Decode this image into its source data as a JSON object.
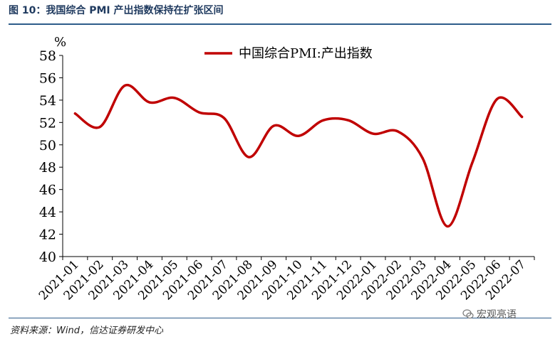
{
  "header": {
    "title": "图 10：我国综合 PMI 产出指数保持在扩张区间"
  },
  "footer": {
    "source": "资料来源：Wind，信达证券研发中心",
    "watermark": "宏观亮语"
  },
  "colors": {
    "series": "#c00000",
    "rule": "#2e5c8a",
    "title": "#1f3a5f"
  },
  "chart_data": {
    "type": "line",
    "title": "",
    "ylabel": "%",
    "xlabel": "",
    "ylim": [
      40,
      58
    ],
    "yticks": [
      40,
      42,
      44,
      46,
      48,
      50,
      52,
      54,
      56,
      58
    ],
    "grid": false,
    "legend_position": "top-center",
    "categories": [
      "2021-01",
      "2021-02",
      "2021-03",
      "2021-04",
      "2021-05",
      "2021-06",
      "2021-07",
      "2021-08",
      "2021-09",
      "2021-10",
      "2021-11",
      "2021-12",
      "2022-01",
      "2022-02",
      "2022-03",
      "2022-04",
      "2022-05",
      "2022-06",
      "2022-07"
    ],
    "series": [
      {
        "name": "中国综合PMI:产出指数",
        "values": [
          52.8,
          51.6,
          55.3,
          53.8,
          54.2,
          52.9,
          52.4,
          48.9,
          51.7,
          50.8,
          52.2,
          52.2,
          51.0,
          51.2,
          48.8,
          42.7,
          48.4,
          54.1,
          52.5
        ]
      }
    ]
  }
}
